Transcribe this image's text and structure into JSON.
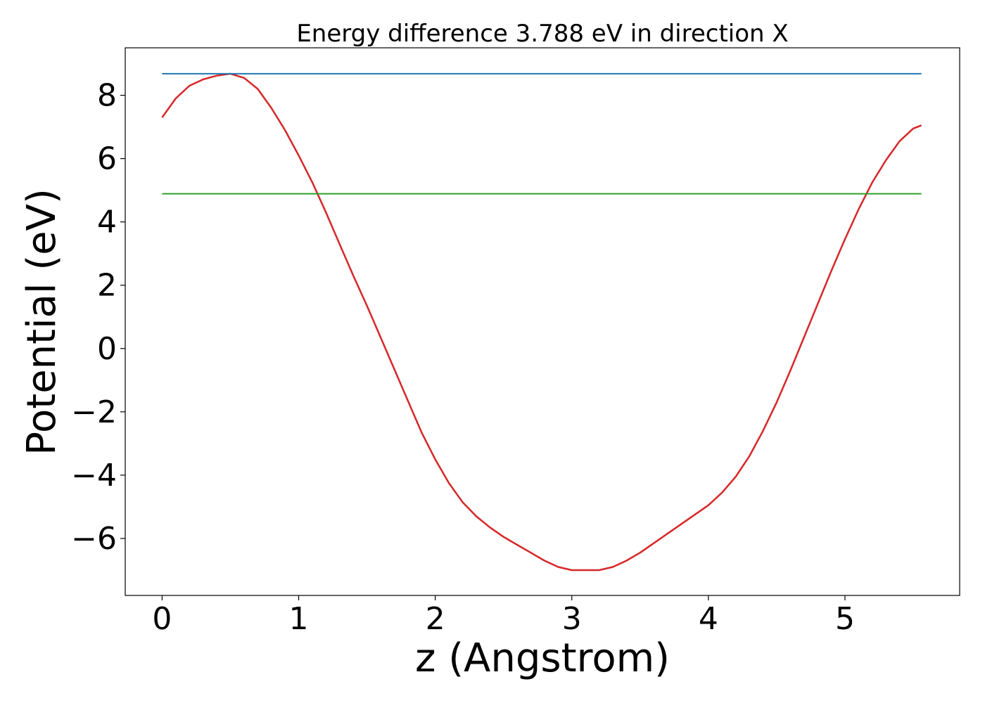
{
  "chart_data": {
    "type": "line",
    "title": "Energy difference 3.788 eV in direction X",
    "xlabel": "z (Angstrom)",
    "ylabel": "Potential (eV)",
    "xlim": [
      -0.27,
      5.84
    ],
    "ylim": [
      -7.8,
      9.5
    ],
    "xticks": [
      0,
      1,
      2,
      3,
      4,
      5
    ],
    "xtick_labels": [
      "0",
      "1",
      "2",
      "3",
      "4",
      "5"
    ],
    "yticks": [
      8,
      6,
      4,
      2,
      0,
      -2,
      -4,
      -6
    ],
    "ytick_labels": [
      "8",
      "6",
      "4",
      "2",
      "0",
      "−2",
      "−4",
      "−6"
    ],
    "grid": false,
    "series": [
      {
        "color": "#d62728",
        "x": [
          0.0,
          0.1,
          0.2,
          0.3,
          0.4,
          0.5,
          0.6,
          0.7,
          0.8,
          0.9,
          1.0,
          1.1,
          1.2,
          1.3,
          1.4,
          1.5,
          1.6,
          1.7,
          1.8,
          1.9,
          2.0,
          2.1,
          2.2,
          2.3,
          2.4,
          2.5,
          2.6,
          2.7,
          2.8,
          2.9,
          3.0,
          3.1,
          3.2,
          3.3,
          3.4,
          3.5,
          3.6,
          3.7,
          3.8,
          3.9,
          4.0,
          4.1,
          4.2,
          4.3,
          4.4,
          4.5,
          4.6,
          4.7,
          4.8,
          4.9,
          5.0,
          5.1,
          5.2,
          5.3,
          5.4,
          5.5,
          5.56
        ],
        "y": [
          7.3,
          7.9,
          8.3,
          8.5,
          8.62,
          8.68,
          8.55,
          8.2,
          7.6,
          6.9,
          6.1,
          5.25,
          4.3,
          3.3,
          2.3,
          1.35,
          0.35,
          -0.65,
          -1.65,
          -2.65,
          -3.5,
          -4.25,
          -4.85,
          -5.3,
          -5.65,
          -5.95,
          -6.2,
          -6.45,
          -6.7,
          -6.9,
          -7.0,
          -7.0,
          -7.0,
          -6.9,
          -6.7,
          -6.45,
          -6.15,
          -5.85,
          -5.55,
          -5.25,
          -4.95,
          -4.55,
          -4.05,
          -3.4,
          -2.6,
          -1.7,
          -0.7,
          0.35,
          1.4,
          2.45,
          3.45,
          4.4,
          5.25,
          5.95,
          6.55,
          6.95,
          7.05
        ]
      },
      {
        "color": "#1f77b4",
        "x": [
          0.0,
          5.56
        ],
        "y": [
          8.68,
          8.68
        ]
      },
      {
        "color": "#2ca02c",
        "x": [
          0.0,
          5.56
        ],
        "y": [
          4.89,
          4.89
        ]
      }
    ]
  }
}
